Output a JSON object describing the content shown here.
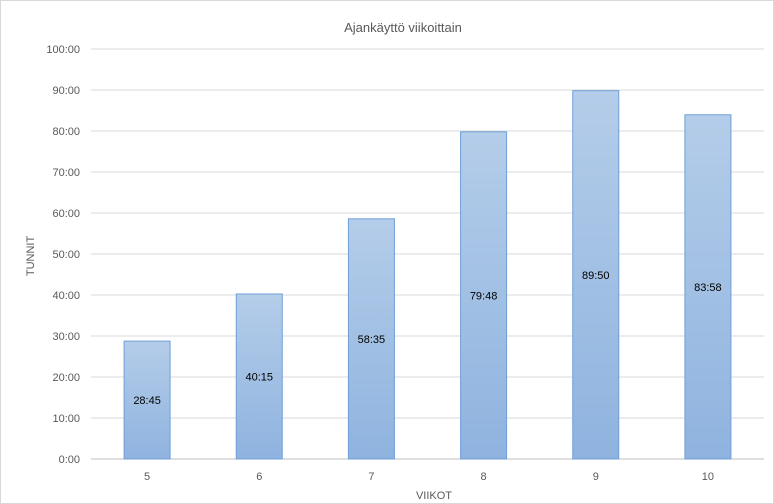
{
  "chart_data": {
    "type": "bar",
    "title": "Ajankäyttö viikoittain",
    "xlabel": "VIIKOT",
    "ylabel": "TUNNIT",
    "categories": [
      "5",
      "6",
      "7",
      "8",
      "9",
      "10"
    ],
    "values": [
      28.75,
      40.25,
      58.583,
      79.8,
      89.833,
      83.967
    ],
    "data_labels": [
      "28:45",
      "40:15",
      "58:35",
      "79:48",
      "89:50",
      "83:58"
    ],
    "ylim": [
      0,
      100
    ],
    "y_ticks": [
      0,
      10,
      20,
      30,
      40,
      50,
      60,
      70,
      80,
      90,
      100
    ],
    "y_tick_labels": [
      "0:00",
      "10:00",
      "20:00",
      "30:00",
      "40:00",
      "50:00",
      "60:00",
      "70:00",
      "80:00",
      "90:00",
      "100:00"
    ],
    "grid": true,
    "legend": "none",
    "colors": {
      "bar_top": "#b4cde9",
      "bar_bottom": "#8fb3df",
      "bar_stroke": "#6f9fd8",
      "grid": "#d9d9d9",
      "axis": "#bfbfbf",
      "text": "#595959",
      "frame": "#d9d9d9"
    }
  }
}
